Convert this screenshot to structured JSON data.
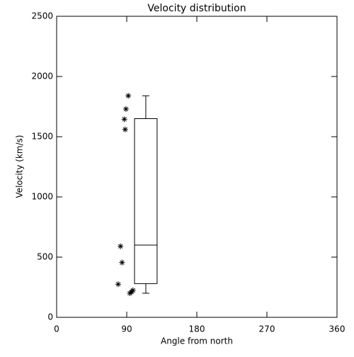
{
  "chart_data": {
    "type": "box",
    "title": "Velocity distribution",
    "xlabel": "Angle from north",
    "ylabel": "Velocity (km/s)",
    "xlim": [
      0,
      360
    ],
    "xticks": [
      0,
      90,
      180,
      270,
      360
    ],
    "ylim": [
      0,
      2500
    ],
    "yticks": [
      0,
      500,
      1000,
      1500,
      2000,
      2500
    ],
    "color": "#000000",
    "box": {
      "x": [
        100,
        129
      ],
      "whisker_low": 200,
      "q1": 280,
      "median": 600,
      "q3": 1650,
      "whisker_high": 1840
    },
    "outliers": {
      "x": [
        92,
        89,
        87,
        88,
        82,
        84,
        79,
        94,
        98,
        96
      ],
      "values": [
        1840,
        1730,
        1645,
        1560,
        590,
        455,
        275,
        200,
        225,
        210
      ]
    }
  }
}
